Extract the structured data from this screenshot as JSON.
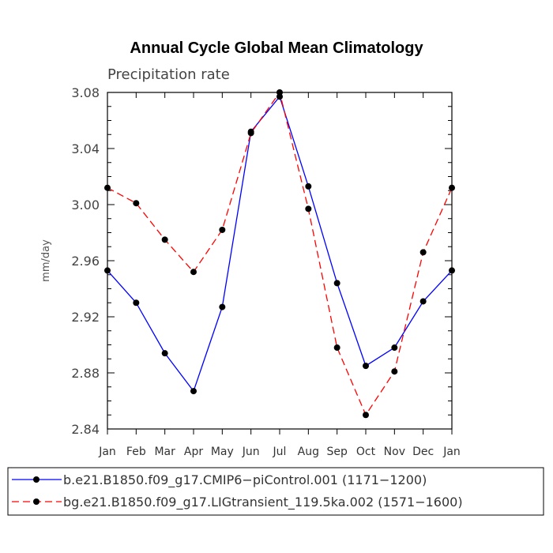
{
  "chart_data": {
    "type": "line",
    "title": "Annual Cycle Global Mean Climatology",
    "subtitle": "Precipitation rate",
    "xlabel": "",
    "ylabel": "mm/day",
    "categories": [
      "Jan",
      "Feb",
      "Mar",
      "Apr",
      "May",
      "Jun",
      "Jul",
      "Aug",
      "Sep",
      "Oct",
      "Nov",
      "Dec",
      "Jan"
    ],
    "ylim": [
      2.84,
      3.08
    ],
    "yticks": [
      "2.84",
      "2.88",
      "2.92",
      "2.96",
      "3.00",
      "3.04",
      "3.08"
    ],
    "legend_position": "bottom",
    "series": [
      {
        "name": "b.e21.B1850.f09_g17.CMIP6−piControl.001 (1171−1200)",
        "color": "#0000ff",
        "line_style": "solid",
        "values": [
          2.953,
          2.93,
          2.894,
          2.867,
          2.927,
          3.052,
          3.077,
          3.013,
          2.944,
          2.885,
          2.898,
          2.931,
          2.953
        ]
      },
      {
        "name": "bg.e21.B1850.f09_g17.LIGtransient_119.5ka.002 (1571−1600)",
        "color": "#ff0000",
        "line_style": "dashed",
        "values": [
          3.012,
          3.001,
          2.975,
          2.952,
          2.982,
          3.051,
          3.08,
          2.997,
          2.898,
          2.85,
          2.881,
          2.966,
          3.012
        ]
      }
    ]
  }
}
